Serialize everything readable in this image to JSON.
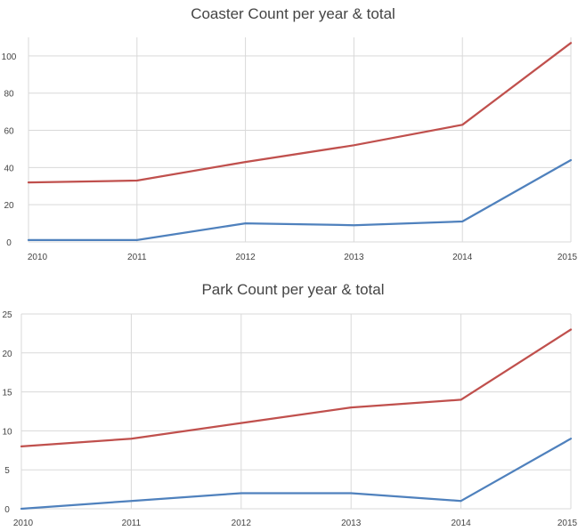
{
  "chart_data": [
    {
      "type": "line",
      "title": "Coaster Count per year & total",
      "categories": [
        "2010",
        "2011",
        "2012",
        "2013",
        "2014",
        "2015"
      ],
      "ylim": [
        0,
        110
      ],
      "yticks": [
        0,
        20,
        40,
        60,
        80,
        100
      ],
      "grid": true,
      "series": [
        {
          "color": "#4f81bd",
          "values": [
            1,
            1,
            10,
            9,
            11,
            44
          ]
        },
        {
          "color": "#c0504d",
          "values": [
            32,
            33,
            43,
            52,
            63,
            107
          ]
        }
      ]
    },
    {
      "type": "line",
      "title": "Park Count per year & total",
      "categories": [
        "2010",
        "2011",
        "2012",
        "2013",
        "2014",
        "2015"
      ],
      "ylim": [
        0,
        25
      ],
      "yticks": [
        0,
        5,
        10,
        15,
        20,
        25
      ],
      "grid": true,
      "series": [
        {
          "color": "#4f81bd",
          "values": [
            0,
            1,
            2,
            2,
            1,
            9
          ]
        },
        {
          "color": "#c0504d",
          "values": [
            8,
            9,
            11,
            13,
            14,
            23
          ]
        }
      ]
    }
  ]
}
